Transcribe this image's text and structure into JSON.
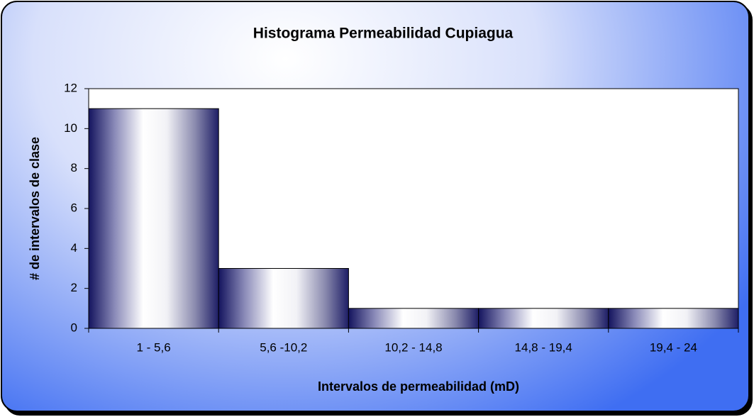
{
  "chart_data": {
    "type": "bar",
    "title": "Histograma Permeabilidad Cupiagua",
    "x_label": "Intervalos de permeabilidad (mD)",
    "y_label": "# de intervalos de clase",
    "categories": [
      "1 - 5,6",
      "5,6 -10,2",
      "10,2 - 14,8",
      "14,8 - 19,4",
      "19,4 - 24"
    ],
    "values": [
      11,
      3,
      1,
      1,
      1
    ],
    "ylim": [
      0,
      12
    ],
    "yticks": [
      0,
      2,
      4,
      6,
      8,
      10,
      12
    ],
    "grid": false
  }
}
